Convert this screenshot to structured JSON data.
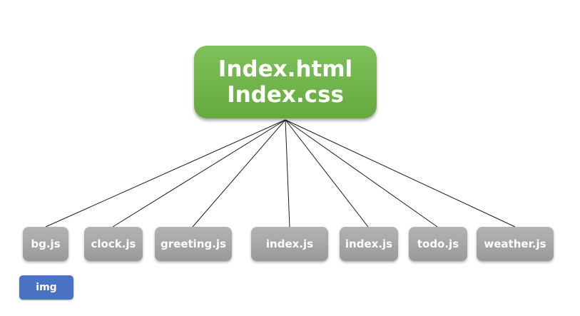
{
  "root": {
    "line1": "Index.html",
    "line2": "Index.css"
  },
  "children": [
    {
      "label": "bg.js"
    },
    {
      "label": "clock.js"
    },
    {
      "label": "greeting.js"
    },
    {
      "label": "index.js"
    },
    {
      "label": "index.js"
    },
    {
      "label": "todo.js"
    },
    {
      "label": "weather.js"
    }
  ],
  "separate": {
    "label": "img"
  },
  "colors": {
    "root": "#6fb148",
    "child": "#a6a6a6",
    "separate": "#4a72c4"
  }
}
